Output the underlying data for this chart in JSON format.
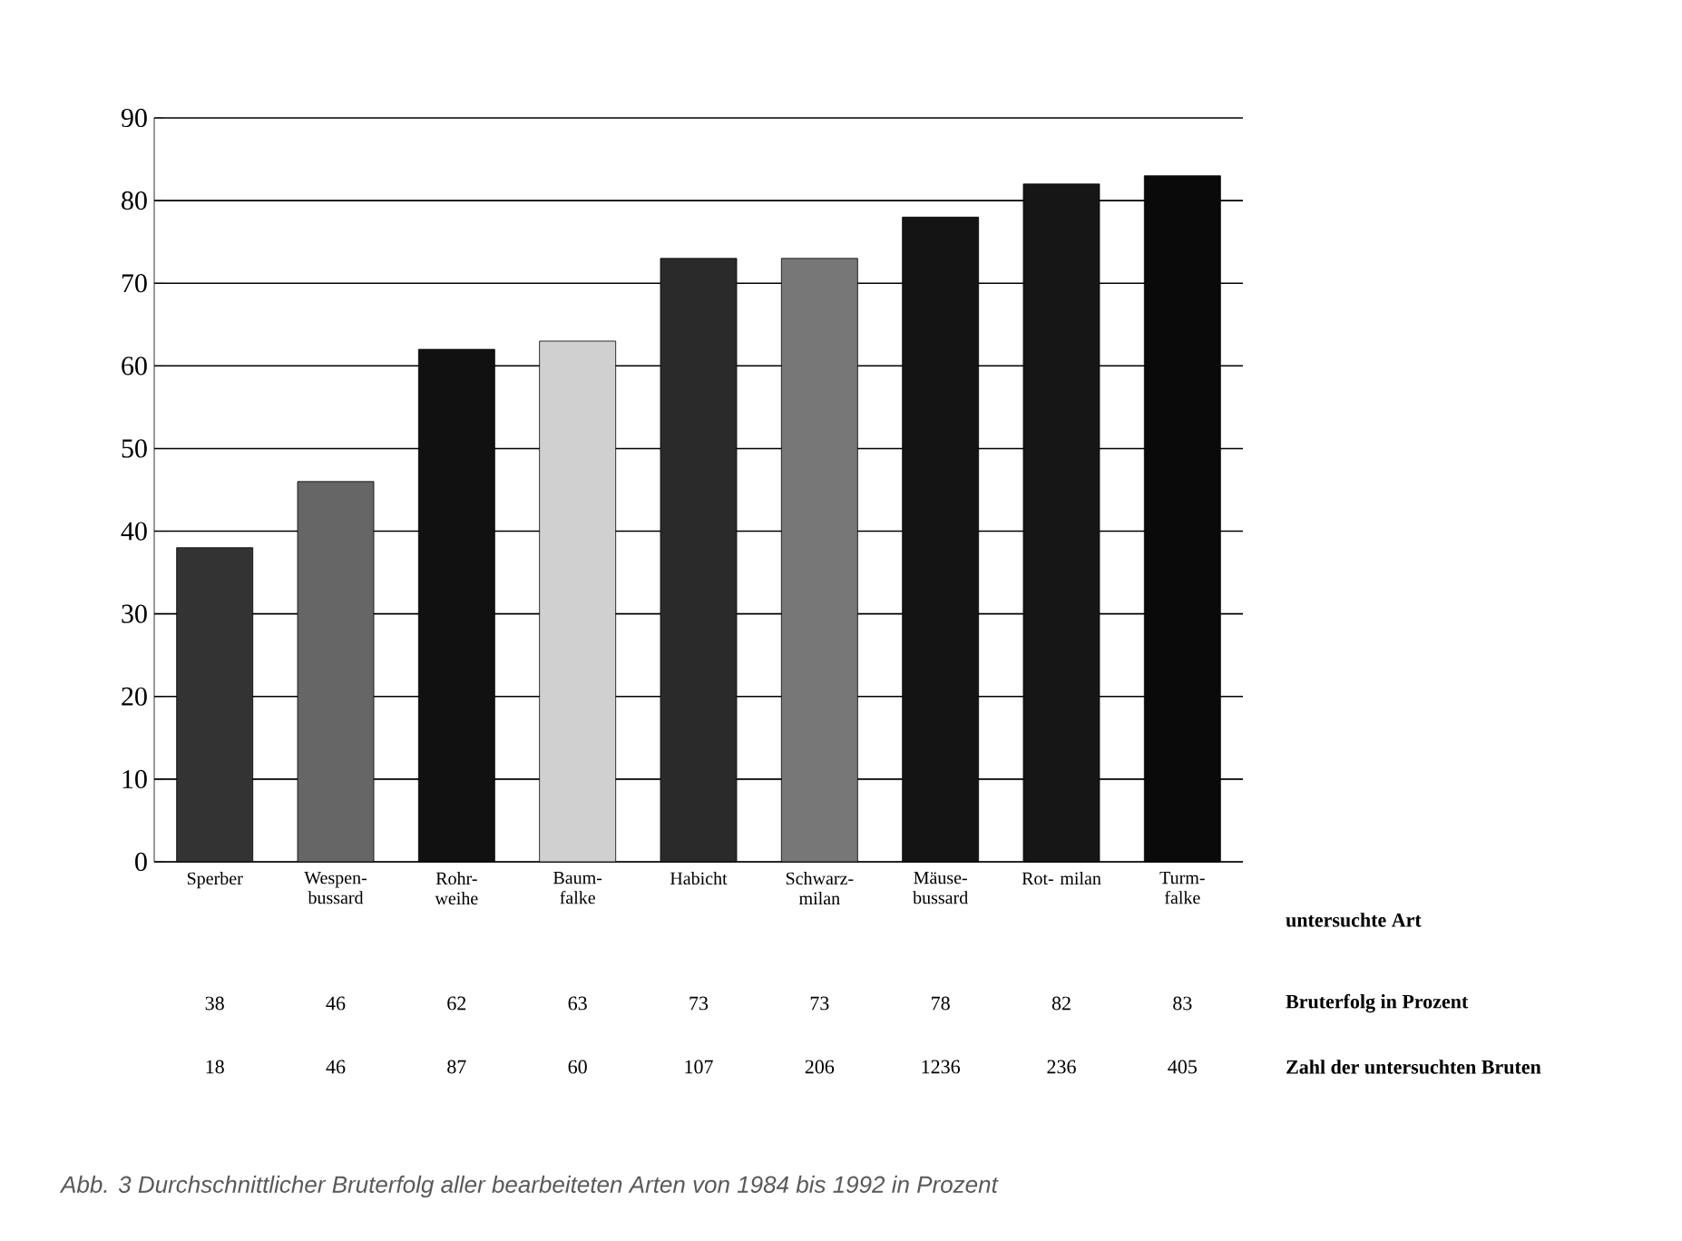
{
  "chart_data": {
    "type": "bar",
    "categories": [
      "Sperber",
      "Wespen- bussard",
      "Rohr- weihe",
      "Baum- falke",
      "Habicht",
      "Schwarz- milan",
      "Mäuse- bussard",
      "Rot- milan",
      "Turm- falke"
    ],
    "values": [
      38,
      46,
      62,
      63,
      73,
      73,
      78,
      82,
      83
    ],
    "colors": [
      "#333333",
      "#666666",
      "#111111",
      "#d0d0d0",
      "#2a2a2a",
      "#777777",
      "#141414",
      "#161616",
      "#0a0a0a"
    ],
    "ylim": [
      0,
      90
    ],
    "yticks": [
      0,
      10,
      20,
      30,
      40,
      50,
      60,
      70,
      80,
      90
    ],
    "grid": "y",
    "data_labels": true,
    "xlabel": "untersuchte Art",
    "ylabel": "Bruterfolg in Prozent",
    "annotations": [
      "18",
      "46",
      "87",
      "60",
      "107",
      "206",
      "1236",
      "236",
      "405",
      "Zahl der untersuchten Bruten",
      "Abb. 3 Durchschnittlicher Bruterfolg aller bearbeiteten Arten von 1984 bis 1992 in Prozent"
    ]
  }
}
